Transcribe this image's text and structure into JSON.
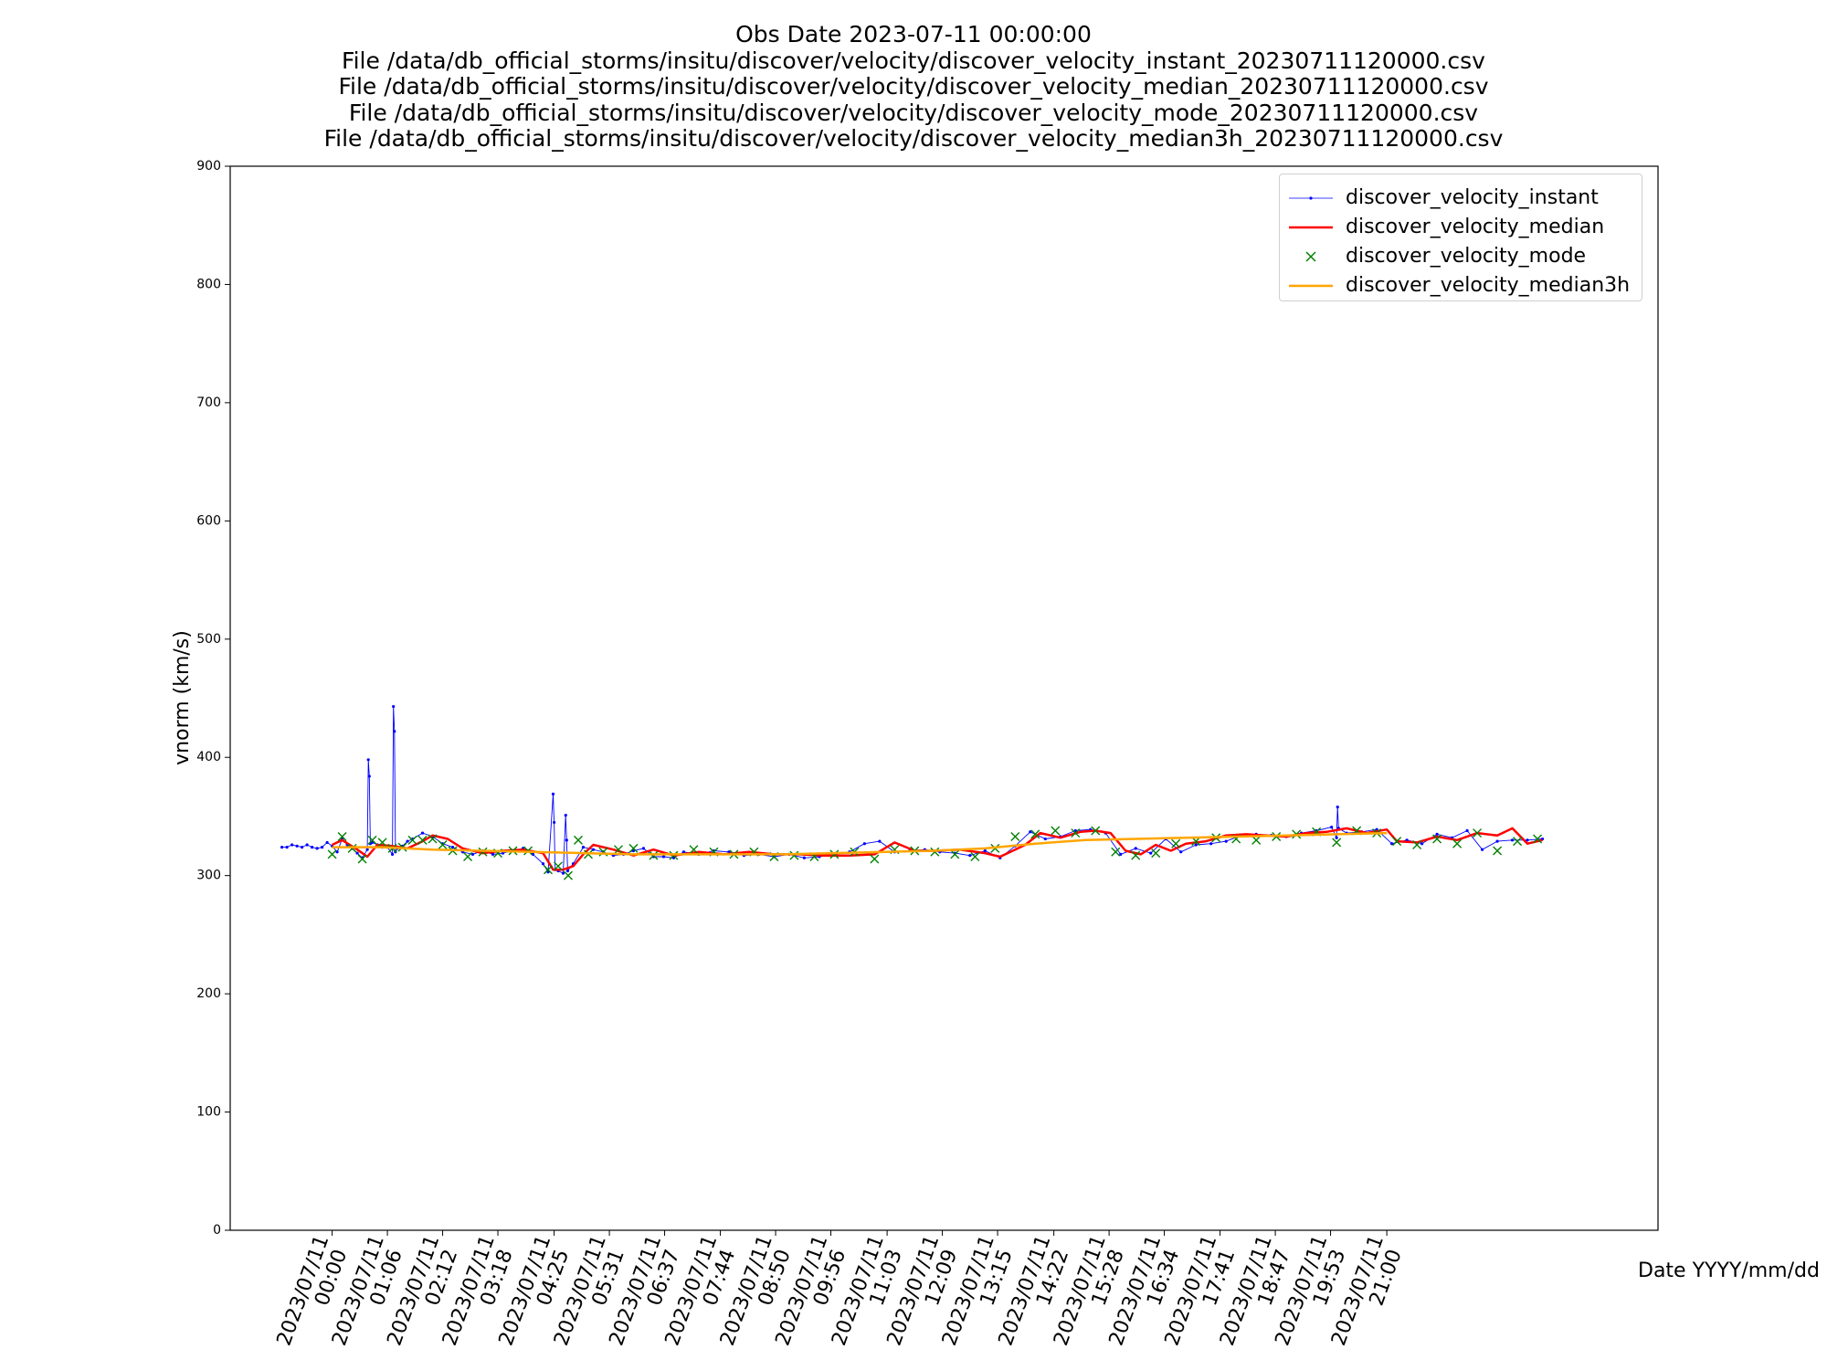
{
  "chart_data": {
    "type": "line",
    "title_lines": [
      "Obs Date 2023-07-11 00:00:00",
      "File /data/db_official_storms/insitu/discover/velocity/discover_velocity_instant_20230711120000.csv",
      "File /data/db_official_storms/insitu/discover/velocity/discover_velocity_median_20230711120000.csv",
      "File /data/db_official_storms/insitu/discover/velocity/discover_velocity_mode_20230711120000.csv",
      "File /data/db_official_storms/insitu/discover/velocity/discover_velocity_median3h_20230711120000.csv"
    ],
    "xlabel": "Date YYYY/mm/dd",
    "ylabel": "vnorm (km/s)",
    "ylim": [
      0,
      900
    ],
    "yticks": [
      0,
      100,
      200,
      300,
      400,
      500,
      600,
      700,
      800,
      900
    ],
    "xlim_hours": [
      -2.03,
      26.4
    ],
    "x_tick_hours": [
      0,
      1.1,
      2.2,
      3.3,
      4.42,
      5.52,
      6.62,
      7.73,
      8.83,
      9.93,
      11.05,
      12.15,
      13.25,
      14.37,
      15.47,
      16.57,
      17.68,
      18.78,
      19.88,
      21.0
    ],
    "x_tick_labels": [
      [
        "2023/07/11",
        "00:00"
      ],
      [
        "2023/07/11",
        "01:06"
      ],
      [
        "2023/07/11",
        "02:12"
      ],
      [
        "2023/07/11",
        "03:18"
      ],
      [
        "2023/07/11",
        "04:25"
      ],
      [
        "2023/07/11",
        "05:31"
      ],
      [
        "2023/07/11",
        "06:37"
      ],
      [
        "2023/07/11",
        "07:44"
      ],
      [
        "2023/07/11",
        "08:50"
      ],
      [
        "2023/07/11",
        "09:56"
      ],
      [
        "2023/07/11",
        "11:03"
      ],
      [
        "2023/07/11",
        "12:09"
      ],
      [
        "2023/07/11",
        "13:15"
      ],
      [
        "2023/07/11",
        "14:22"
      ],
      [
        "2023/07/11",
        "15:28"
      ],
      [
        "2023/07/11",
        "16:34"
      ],
      [
        "2023/07/11",
        "17:41"
      ],
      [
        "2023/07/11",
        "18:47"
      ],
      [
        "2023/07/11",
        "19:53"
      ],
      [
        "2023/07/11",
        "21:00"
      ]
    ],
    "grid": false,
    "legend_position": "top-right",
    "series": [
      {
        "name": "discover_velocity_instant",
        "style": "line-with-dots",
        "color": "#0000ff",
        "x": [
          -1.0,
          -0.9,
          -0.8,
          -0.7,
          -0.6,
          -0.5,
          -0.4,
          -0.3,
          -0.2,
          -0.1,
          0.0,
          0.1,
          0.2,
          0.3,
          0.4,
          0.5,
          0.6,
          0.7,
          0.72,
          0.74,
          0.76,
          0.8,
          0.9,
          1.0,
          1.1,
          1.2,
          1.22,
          1.24,
          1.26,
          1.3,
          1.4,
          1.5,
          1.6,
          1.8,
          2.0,
          2.2,
          2.4,
          2.6,
          2.8,
          3.0,
          3.2,
          3.4,
          3.6,
          3.8,
          4.0,
          4.2,
          4.3,
          4.4,
          4.42,
          4.44,
          4.5,
          4.6,
          4.65,
          4.67,
          4.69,
          4.8,
          5.0,
          5.2,
          5.4,
          5.6,
          5.8,
          6.0,
          6.2,
          6.4,
          6.6,
          6.8,
          7.0,
          7.3,
          7.6,
          7.9,
          8.2,
          8.5,
          8.8,
          9.1,
          9.4,
          9.7,
          10.0,
          10.3,
          10.6,
          10.9,
          11.2,
          11.5,
          11.8,
          12.1,
          12.4,
          12.7,
          13.0,
          13.3,
          13.6,
          13.9,
          14.2,
          14.5,
          14.8,
          15.1,
          15.4,
          15.7,
          16.0,
          16.3,
          16.6,
          16.9,
          17.2,
          17.5,
          17.8,
          18.1,
          18.4,
          18.7,
          19.0,
          19.3,
          19.6,
          19.9,
          20.0,
          20.02,
          20.04,
          20.2,
          20.5,
          20.8,
          21.1,
          21.4,
          21.7,
          22.0,
          22.3,
          22.6,
          22.9,
          23.2,
          23.5,
          23.8,
          24.1
        ],
        "y": [
          324,
          324,
          326,
          325,
          324,
          326,
          324,
          323,
          324,
          328,
          325,
          320,
          331,
          326,
          323,
          319,
          315,
          322,
          398,
          384,
          327,
          328,
          326,
          324,
          324,
          318,
          443,
          422,
          320,
          323,
          325,
          329,
          331,
          336,
          333,
          327,
          324,
          320,
          318,
          321,
          318,
          319,
          321,
          323,
          318,
          310,
          303,
          369,
          345,
          305,
          304,
          302,
          351,
          330,
          304,
          310,
          324,
          322,
          320,
          317,
          318,
          321,
          323,
          316,
          316,
          315,
          320,
          318,
          321,
          320,
          317,
          318,
          316,
          318,
          315,
          316,
          318,
          320,
          327,
          329,
          320,
          321,
          322,
          320,
          319,
          317,
          321,
          315,
          325,
          337,
          331,
          333,
          338,
          339,
          336,
          318,
          323,
          319,
          331,
          320,
          326,
          327,
          329,
          334,
          335,
          334,
          333,
          336,
          338,
          341,
          332,
          358,
          340,
          336,
          337,
          339,
          327,
          330,
          327,
          335,
          332,
          338,
          322,
          329,
          330,
          330,
          331
        ]
      },
      {
        "name": "discover_velocity_median",
        "style": "line",
        "color": "#ff0000",
        "x": [
          0.0,
          0.2,
          0.5,
          0.7,
          0.9,
          1.2,
          1.5,
          1.8,
          2.0,
          2.3,
          2.6,
          3.0,
          3.4,
          3.8,
          4.2,
          4.4,
          4.6,
          4.8,
          5.0,
          5.2,
          5.6,
          6.0,
          6.4,
          6.8,
          7.3,
          7.8,
          8.3,
          8.8,
          9.3,
          9.8,
          10.3,
          10.8,
          11.2,
          11.6,
          12.0,
          12.5,
          13.0,
          13.3,
          13.6,
          13.8,
          14.1,
          14.5,
          14.9,
          15.2,
          15.5,
          15.8,
          16.1,
          16.4,
          16.7,
          17.0,
          17.4,
          17.8,
          18.2,
          18.6,
          19.0,
          19.4,
          19.8,
          20.2,
          20.6,
          21.0,
          21.2,
          21.6,
          22.0,
          22.4,
          22.8,
          23.2,
          23.5,
          23.8,
          24.1
        ],
        "y": [
          326,
          330,
          322,
          316,
          326,
          325,
          323,
          329,
          334,
          331,
          323,
          319,
          321,
          322,
          319,
          305,
          305,
          308,
          318,
          326,
          322,
          317,
          322,
          317,
          320,
          318,
          320,
          318,
          318,
          317,
          317,
          318,
          328,
          321,
          321,
          322,
          319,
          316,
          322,
          326,
          336,
          332,
          337,
          338,
          336,
          321,
          318,
          326,
          321,
          327,
          329,
          334,
          335,
          334,
          333,
          336,
          337,
          340,
          336,
          339,
          329,
          328,
          333,
          330,
          336,
          334,
          340,
          327,
          330
        ]
      },
      {
        "name": "discover_velocity_mode",
        "style": "markers-x",
        "color": "#008000",
        "x": [
          0.0,
          0.2,
          0.4,
          0.6,
          0.8,
          1.0,
          1.2,
          1.4,
          1.6,
          1.8,
          2.0,
          2.2,
          2.4,
          2.7,
          3.0,
          3.3,
          3.6,
          3.9,
          4.3,
          4.5,
          4.7,
          4.9,
          5.1,
          5.4,
          5.7,
          6.0,
          6.4,
          6.8,
          7.2,
          7.6,
          8.0,
          8.4,
          8.8,
          9.2,
          9.6,
          10.0,
          10.4,
          10.8,
          11.2,
          11.6,
          12.0,
          12.4,
          12.8,
          13.2,
          13.6,
          14.0,
          14.4,
          14.8,
          15.2,
          15.6,
          16.0,
          16.4,
          16.8,
          17.2,
          17.6,
          18.0,
          18.4,
          18.8,
          19.2,
          19.6,
          20.0,
          20.4,
          20.8,
          21.2,
          21.6,
          22.0,
          22.4,
          22.8,
          23.2,
          23.6,
          24.0
        ],
        "y": [
          318,
          333,
          323,
          314,
          330,
          328,
          323,
          324,
          330,
          330,
          331,
          326,
          321,
          316,
          320,
          319,
          321,
          321,
          305,
          308,
          300,
          330,
          318,
          320,
          322,
          323,
          317,
          317,
          322,
          320,
          318,
          320,
          316,
          317,
          316,
          318,
          320,
          314,
          322,
          321,
          320,
          318,
          316,
          323,
          333,
          335,
          338,
          336,
          338,
          320,
          317,
          319,
          327,
          329,
          332,
          331,
          330,
          333,
          335,
          337,
          328,
          338,
          336,
          329,
          326,
          331,
          327,
          336,
          321,
          329,
          331
        ]
      },
      {
        "name": "discover_velocity_median3h",
        "style": "line",
        "color": "#ffa500",
        "x": [
          0.0,
          1.0,
          2.0,
          3.0,
          4.0,
          5.0,
          6.0,
          7.0,
          8.0,
          9.0,
          10.0,
          11.0,
          12.0,
          13.0,
          14.0,
          15.0,
          16.0,
          17.0,
          18.0,
          19.0,
          20.0,
          21.0
        ],
        "y": [
          324,
          324,
          322,
          321,
          320,
          319,
          318,
          318,
          318,
          318,
          319,
          320,
          321,
          323,
          327,
          330,
          331,
          332,
          333,
          334,
          335,
          336
        ]
      }
    ]
  }
}
